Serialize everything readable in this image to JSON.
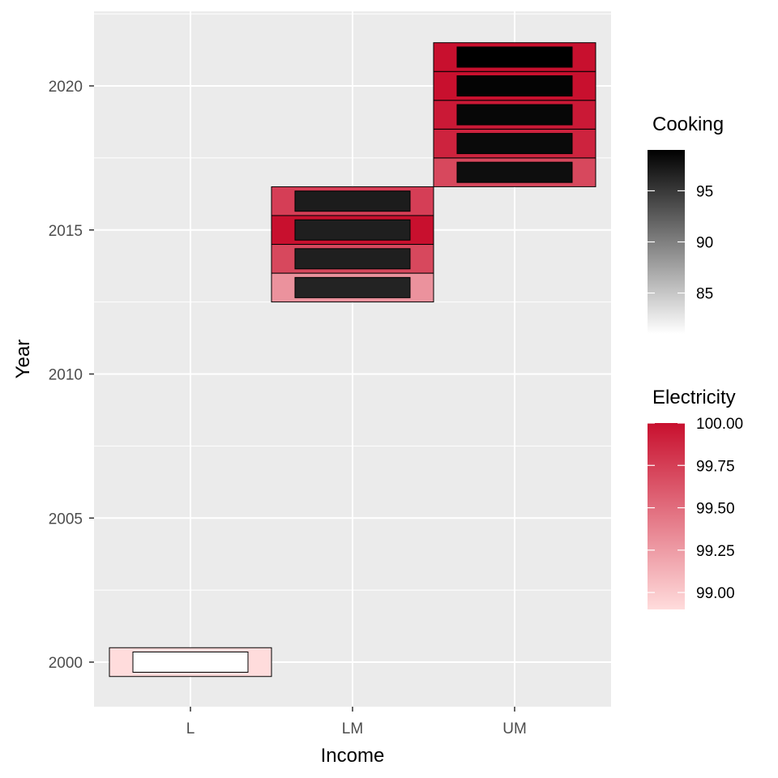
{
  "chart_data": {
    "type": "heatmap",
    "xlabel": "Income",
    "ylabel": "Year",
    "categories": [
      "L",
      "LM",
      "UM"
    ],
    "y_ticks": [
      2000,
      2005,
      2010,
      2015,
      2020
    ],
    "ylim": [
      1998.5,
      2022.5
    ],
    "cells": [
      {
        "income": "L",
        "year": 2000,
        "electricity": 98.9,
        "cooking": 81.0
      },
      {
        "income": "LM",
        "year": 2013,
        "electricity": 99.3,
        "cooking": 96.5
      },
      {
        "income": "LM",
        "year": 2014,
        "electricity": 99.7,
        "cooking": 96.8
      },
      {
        "income": "LM",
        "year": 2015,
        "electricity": 100.0,
        "cooking": 96.8
      },
      {
        "income": "LM",
        "year": 2016,
        "electricity": 99.75,
        "cooking": 97.0
      },
      {
        "income": "UM",
        "year": 2017,
        "electricity": 99.7,
        "cooking": 98.0
      },
      {
        "income": "UM",
        "year": 2018,
        "electricity": 99.9,
        "cooking": 98.3
      },
      {
        "income": "UM",
        "year": 2019,
        "electricity": 99.95,
        "cooking": 98.5
      },
      {
        "income": "UM",
        "year": 2020,
        "electricity": 100.0,
        "cooking": 98.7
      },
      {
        "income": "UM",
        "year": 2021,
        "electricity": 100.0,
        "cooking": 99.0
      }
    ],
    "legends": {
      "cooking": {
        "title": "Cooking",
        "breaks": [
          85,
          90,
          95
        ],
        "range": [
          81,
          99
        ],
        "low_color": "#ffffff",
        "high_color": "#000000"
      },
      "electricity": {
        "title": "Electricity",
        "breaks": [
          "99.00",
          "99.25",
          "99.50",
          "99.75",
          "100.00"
        ],
        "range": [
          98.9,
          100.0
        ],
        "low_color": "#ffdcdc",
        "high_color": "#c8102e"
      }
    },
    "grid": true,
    "panel_background": "#ebebeb",
    "grid_color": "#ffffff"
  }
}
